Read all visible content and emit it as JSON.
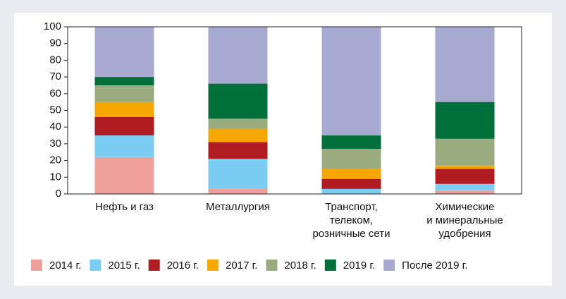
{
  "chart_data": {
    "type": "stacked_bar",
    "categories": [
      [
        "Нефть и газ"
      ],
      [
        "Металлургия"
      ],
      [
        "Транспорт,",
        "телеком,",
        "розничные сети"
      ],
      [
        "Химические",
        "и минеральные",
        "удобрения"
      ]
    ],
    "series": [
      {
        "name": "2014 г.",
        "color": "#f0a09a",
        "values": [
          22,
          3,
          0,
          2
        ]
      },
      {
        "name": "2015 г.",
        "color": "#7ccdf3",
        "values": [
          13,
          18,
          3,
          4
        ]
      },
      {
        "name": "2016 г.",
        "color": "#b01c22",
        "values": [
          11,
          10,
          6,
          9
        ]
      },
      {
        "name": "2017 г.",
        "color": "#f6a800",
        "values": [
          9,
          8,
          6,
          2
        ]
      },
      {
        "name": "2018 г.",
        "color": "#9aab7f",
        "values": [
          10,
          6,
          12,
          16
        ]
      },
      {
        "name": "2019 г.",
        "color": "#006f39",
        "values": [
          5,
          21,
          8,
          22
        ]
      },
      {
        "name": "После 2019 г.",
        "color": "#a9aad2",
        "values": [
          30,
          34,
          65,
          45
        ]
      }
    ],
    "ylim": [
      0,
      100
    ],
    "yticks": [
      0,
      10,
      20,
      30,
      40,
      50,
      60,
      70,
      80,
      90,
      100
    ]
  }
}
